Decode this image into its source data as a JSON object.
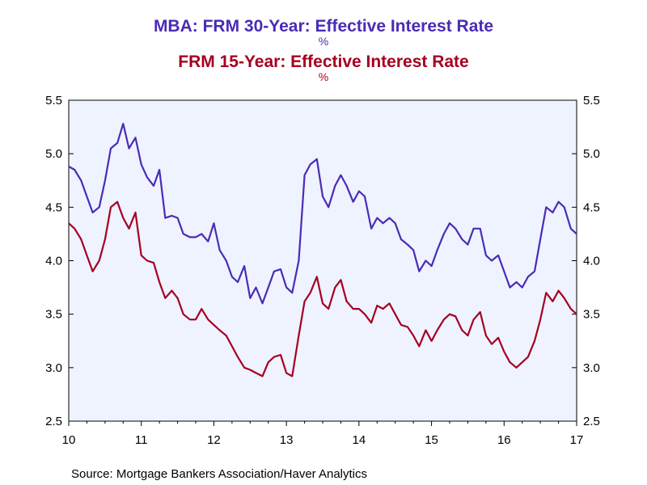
{
  "titles": {
    "line1": "MBA: FRM 30-Year: Effective Interest Rate",
    "unit1": "%",
    "line2": "FRM 15-Year: Effective Interest Rate",
    "unit2": "%"
  },
  "source": "Source:  Mortgage Bankers Association/Haver Analytics",
  "colors": {
    "series_30yr": "#4B2BB5",
    "series_15yr": "#A50021",
    "plot_background": "#EEF3FF",
    "axis": "#000000"
  },
  "chart_data": {
    "type": "line",
    "title": "MBA: FRM 30-Year: Effective Interest Rate / FRM 15-Year: Effective Interest Rate",
    "xlabel": "",
    "ylabel": "%",
    "xlim": [
      2010,
      2017
    ],
    "ylim": [
      2.5,
      5.5
    ],
    "yticks": [
      2.5,
      3.0,
      3.5,
      4.0,
      4.5,
      5.0,
      5.5
    ],
    "ytick_labels": [
      "2.5",
      "3.0",
      "3.5",
      "4.0",
      "4.5",
      "5.0",
      "5.5"
    ],
    "xticks": [
      2010,
      2011,
      2012,
      2013,
      2014,
      2015,
      2016,
      2017
    ],
    "xtick_labels": [
      "10",
      "11",
      "12",
      "13",
      "14",
      "15",
      "16",
      "17"
    ],
    "dual_y_axis_mirrored": true,
    "grid": false,
    "series": [
      {
        "name": "FRM 30-Year",
        "color": "#4B2BB5",
        "x": [
          2010.0,
          2010.08,
          2010.17,
          2010.25,
          2010.33,
          2010.42,
          2010.5,
          2010.58,
          2010.67,
          2010.75,
          2010.83,
          2010.92,
          2011.0,
          2011.08,
          2011.17,
          2011.25,
          2011.33,
          2011.42,
          2011.5,
          2011.58,
          2011.67,
          2011.75,
          2011.83,
          2011.92,
          2012.0,
          2012.08,
          2012.17,
          2012.25,
          2012.33,
          2012.42,
          2012.5,
          2012.58,
          2012.67,
          2012.75,
          2012.83,
          2012.92,
          2013.0,
          2013.08,
          2013.17,
          2013.25,
          2013.33,
          2013.42,
          2013.5,
          2013.58,
          2013.67,
          2013.75,
          2013.83,
          2013.92,
          2014.0,
          2014.08,
          2014.17,
          2014.25,
          2014.33,
          2014.42,
          2014.5,
          2014.58,
          2014.67,
          2014.75,
          2014.83,
          2014.92,
          2015.0,
          2015.08,
          2015.17,
          2015.25,
          2015.33,
          2015.42,
          2015.5,
          2015.58,
          2015.67,
          2015.75,
          2015.83,
          2015.92,
          2016.0,
          2016.08,
          2016.17,
          2016.25,
          2016.33,
          2016.42,
          2016.5,
          2016.58,
          2016.67,
          2016.75,
          2016.83,
          2016.92,
          2017.0
        ],
        "values": [
          4.88,
          4.85,
          4.75,
          4.6,
          4.45,
          4.5,
          4.75,
          5.05,
          5.1,
          5.28,
          5.05,
          5.15,
          4.9,
          4.78,
          4.7,
          4.85,
          4.4,
          4.42,
          4.4,
          4.25,
          4.22,
          4.22,
          4.25,
          4.18,
          4.35,
          4.1,
          4.0,
          3.85,
          3.8,
          3.95,
          3.65,
          3.75,
          3.6,
          3.75,
          3.9,
          3.92,
          3.75,
          3.7,
          4.0,
          4.8,
          4.9,
          4.95,
          4.6,
          4.5,
          4.7,
          4.8,
          4.7,
          4.55,
          4.65,
          4.6,
          4.3,
          4.4,
          4.35,
          4.4,
          4.35,
          4.2,
          4.15,
          4.1,
          3.9,
          4.0,
          3.95,
          4.1,
          4.25,
          4.35,
          4.3,
          4.2,
          4.15,
          4.3,
          4.3,
          4.05,
          4.0,
          4.05,
          3.9,
          3.75,
          3.8,
          3.75,
          3.85,
          3.9,
          4.2,
          4.5,
          4.45,
          4.55,
          4.5,
          4.3,
          4.25
        ]
      },
      {
        "name": "FRM 15-Year",
        "color": "#A50021",
        "x": [
          2010.0,
          2010.08,
          2010.17,
          2010.25,
          2010.33,
          2010.42,
          2010.5,
          2010.58,
          2010.67,
          2010.75,
          2010.83,
          2010.92,
          2011.0,
          2011.08,
          2011.17,
          2011.25,
          2011.33,
          2011.42,
          2011.5,
          2011.58,
          2011.67,
          2011.75,
          2011.83,
          2011.92,
          2012.0,
          2012.08,
          2012.17,
          2012.25,
          2012.33,
          2012.42,
          2012.5,
          2012.58,
          2012.67,
          2012.75,
          2012.83,
          2012.92,
          2013.0,
          2013.08,
          2013.17,
          2013.25,
          2013.33,
          2013.42,
          2013.5,
          2013.58,
          2013.67,
          2013.75,
          2013.83,
          2013.92,
          2014.0,
          2014.08,
          2014.17,
          2014.25,
          2014.33,
          2014.42,
          2014.5,
          2014.58,
          2014.67,
          2014.75,
          2014.83,
          2014.92,
          2015.0,
          2015.08,
          2015.17,
          2015.25,
          2015.33,
          2015.42,
          2015.5,
          2015.58,
          2015.67,
          2015.75,
          2015.83,
          2015.92,
          2016.0,
          2016.08,
          2016.17,
          2016.25,
          2016.33,
          2016.42,
          2016.5,
          2016.58,
          2016.67,
          2016.75,
          2016.83,
          2016.92,
          2017.0
        ],
        "values": [
          4.35,
          4.3,
          4.2,
          4.05,
          3.9,
          4.0,
          4.2,
          4.5,
          4.55,
          4.4,
          4.3,
          4.45,
          4.05,
          4.0,
          3.98,
          3.8,
          3.65,
          3.72,
          3.65,
          3.5,
          3.45,
          3.45,
          3.55,
          3.45,
          3.4,
          3.35,
          3.3,
          3.2,
          3.1,
          3.0,
          2.98,
          2.95,
          2.92,
          3.05,
          3.1,
          3.12,
          2.95,
          2.92,
          3.3,
          3.62,
          3.7,
          3.85,
          3.6,
          3.55,
          3.75,
          3.82,
          3.62,
          3.55,
          3.55,
          3.5,
          3.42,
          3.58,
          3.55,
          3.6,
          3.5,
          3.4,
          3.38,
          3.3,
          3.2,
          3.35,
          3.25,
          3.35,
          3.45,
          3.5,
          3.48,
          3.35,
          3.3,
          3.45,
          3.52,
          3.3,
          3.22,
          3.28,
          3.15,
          3.05,
          3.0,
          3.05,
          3.1,
          3.25,
          3.45,
          3.7,
          3.62,
          3.72,
          3.65,
          3.55,
          3.5
        ]
      }
    ]
  }
}
